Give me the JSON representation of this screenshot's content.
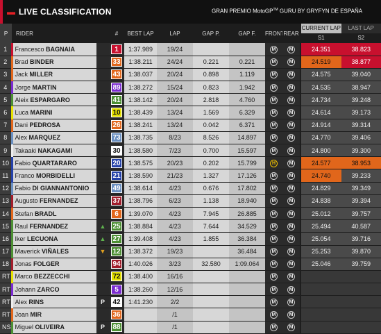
{
  "header": {
    "title": "LIVE CLASSIFICATION",
    "event": "GRAN PREMIO MotoGP",
    "event_tm": "TM",
    "event_suffix": " GURU BY GRYFYN DE ESPAÑA"
  },
  "columns": {
    "pos": "P",
    "rider": "RIDER",
    "num": "#",
    "best": "BEST LAP",
    "lap": "LAP",
    "gapp": "GAP P.",
    "gapf": "GAP F.",
    "front": "FRONT",
    "rear": "REAR"
  },
  "current_lap": {
    "tab_active": "CURRENT LAP",
    "tab_other": "LAST LAP",
    "s1": "S1",
    "s2": "S2"
  },
  "rows": [
    {
      "pos": "1",
      "first": "Francesco",
      "last": "BAGNAIA",
      "team": "#c8102e",
      "arrow": "",
      "num": "1",
      "numbg": "#c8102e",
      "numfg": "#fff",
      "best": "1:37.989",
      "lap": "19/24",
      "gapp": "",
      "gapf": "",
      "front": "M",
      "rear": "M",
      "s1": "24.351",
      "s2": "38.823",
      "s1c": "red",
      "s2c": "red"
    },
    {
      "pos": "2",
      "first": "Brad",
      "last": "BINDER",
      "team": "#e1661b",
      "arrow": "",
      "num": "33",
      "numbg": "#e1661b",
      "numfg": "#fff",
      "best": "1:38.211",
      "lap": "24/24",
      "gapp": "0.221",
      "gapf": "0.221",
      "front": "M",
      "rear": "M",
      "s1": "24.519",
      "s2": "38.877",
      "s1c": "orange",
      "s2c": "red"
    },
    {
      "pos": "3",
      "first": "Jack",
      "last": "MILLER",
      "team": "#e1661b",
      "arrow": "",
      "num": "43",
      "numbg": "#e1661b",
      "numfg": "#fff",
      "best": "1:38.037",
      "lap": "20/24",
      "gapp": "0.898",
      "gapf": "1.119",
      "front": "M",
      "rear": "M",
      "s1": "24.575",
      "s2": "39.040",
      "s1c": "",
      "s2c": ""
    },
    {
      "pos": "4",
      "first": "Jorge",
      "last": "MARTIN",
      "team": "#7b2bd0",
      "arrow": "",
      "num": "89",
      "numbg": "#7b2bd0",
      "numfg": "#fff",
      "best": "1:38.272",
      "lap": "15/24",
      "gapp": "0.823",
      "gapf": "1.942",
      "front": "M",
      "rear": "M",
      "s1": "24.535",
      "s2": "38.947",
      "s1c": "",
      "s2c": ""
    },
    {
      "pos": "5",
      "first": "Aleix",
      "last": "ESPARGARO",
      "team": "#4c8f33",
      "arrow": "",
      "num": "41",
      "numbg": "#4c8f33",
      "numfg": "#fff",
      "best": "1:38.142",
      "lap": "20/24",
      "gapp": "2.818",
      "gapf": "4.760",
      "front": "M",
      "rear": "M",
      "s1": "24.734",
      "s2": "39.248",
      "s1c": "",
      "s2c": ""
    },
    {
      "pos": "6",
      "first": "Luca",
      "last": "MARINI",
      "team": "#e5e100",
      "arrow": "",
      "num": "10",
      "numbg": "#e5e100",
      "numfg": "#111",
      "best": "1:38.439",
      "lap": "13/24",
      "gapp": "1.569",
      "gapf": "6.329",
      "front": "M",
      "rear": "M",
      "s1": "24.614",
      "s2": "39.173",
      "s1c": "",
      "s2c": ""
    },
    {
      "pos": "7",
      "first": "Dani",
      "last": "PEDROSA",
      "team": "#e1661b",
      "arrow": "",
      "num": "26",
      "numbg": "#e1661b",
      "numfg": "#fff",
      "best": "1:38.241",
      "lap": "13/24",
      "gapp": "0.042",
      "gapf": "6.371",
      "front": "M",
      "rear": "M",
      "s1": "24.914",
      "s2": "39.314",
      "s1c": "",
      "s2c": ""
    },
    {
      "pos": "8",
      "first": "Alex",
      "last": "MARQUEZ",
      "team": "#6a8fc0",
      "arrow": "",
      "num": "73",
      "numbg": "#6a8fc0",
      "numfg": "#fff",
      "best": "1:38.735",
      "lap": "8/23",
      "gapp": "8.526",
      "gapf": "14.897",
      "front": "M",
      "rear": "M",
      "s1": "24.770",
      "s2": "39.406",
      "s1c": "",
      "s2c": ""
    },
    {
      "pos": "9",
      "first": "Takaaki",
      "last": "NAKAGAMI",
      "team": "#eeeeee",
      "arrow": "",
      "num": "30",
      "numbg": "#ffffff",
      "numfg": "#111",
      "best": "1:38.580",
      "lap": "7/23",
      "gapp": "0.700",
      "gapf": "15.597",
      "front": "M",
      "rear": "M",
      "s1": "24.800",
      "s2": "39.300",
      "s1c": "",
      "s2c": ""
    },
    {
      "pos": "10",
      "first": "Fabio",
      "last": "QUARTARARO",
      "team": "#2541a8",
      "arrow": "",
      "num": "20",
      "numbg": "#2541a8",
      "numfg": "#fff",
      "best": "1:38.575",
      "lap": "20/23",
      "gapp": "0.202",
      "gapf": "15.799",
      "front": "H",
      "rear": "M",
      "s1": "24.577",
      "s2": "38.953",
      "s1c": "orange",
      "s2c": "orange"
    },
    {
      "pos": "11",
      "first": "Franco",
      "last": "MORBIDELLI",
      "team": "#2541a8",
      "arrow": "",
      "num": "21",
      "numbg": "#2541a8",
      "numfg": "#fff",
      "best": "1:38.590",
      "lap": "21/23",
      "gapp": "1.327",
      "gapf": "17.126",
      "front": "M",
      "rear": "M",
      "s1": "24.740",
      "s2": "39.233",
      "s1c": "orange",
      "s2c": ""
    },
    {
      "pos": "12",
      "first": "Fabio",
      "last": "DI GIANNANTONIO",
      "team": "#6a8fc0",
      "arrow": "",
      "num": "49",
      "numbg": "#6a8fc0",
      "numfg": "#fff",
      "best": "1:38.614",
      "lap": "4/23",
      "gapp": "0.676",
      "gapf": "17.802",
      "front": "M",
      "rear": "M",
      "s1": "24.829",
      "s2": "39.349",
      "s1c": "",
      "s2c": ""
    },
    {
      "pos": "13",
      "first": "Augusto",
      "last": "FERNANDEZ",
      "team": "#a11d2b",
      "arrow": "",
      "num": "37",
      "numbg": "#a11d2b",
      "numfg": "#fff",
      "best": "1:38.796",
      "lap": "6/23",
      "gapp": "1.138",
      "gapf": "18.940",
      "front": "M",
      "rear": "M",
      "s1": "24.838",
      "s2": "39.394",
      "s1c": "",
      "s2c": ""
    },
    {
      "pos": "14",
      "first": "Stefan",
      "last": "BRADL",
      "team": "#e1661b",
      "arrow": "",
      "num": "6",
      "numbg": "#e1661b",
      "numfg": "#fff",
      "best": "1:39.070",
      "lap": "4/23",
      "gapp": "7.945",
      "gapf": "26.885",
      "front": "M",
      "rear": "M",
      "s1": "25.012",
      "s2": "39.757",
      "s1c": "",
      "s2c": ""
    },
    {
      "pos": "15",
      "first": "Raul",
      "last": "FERNANDEZ",
      "team": "#4c8f33",
      "arrow": "up",
      "num": "25",
      "numbg": "#4c8f33",
      "numfg": "#fff",
      "best": "1:38.884",
      "lap": "4/23",
      "gapp": "7.644",
      "gapf": "34.529",
      "front": "M",
      "rear": "M",
      "s1": "25.494",
      "s2": "40.587",
      "s1c": "",
      "s2c": ""
    },
    {
      "pos": "16",
      "first": "Iker",
      "last": "LECUONA",
      "team": "#4c8f33",
      "arrow": "up",
      "num": "27",
      "numbg": "#4c8f33",
      "numfg": "#fff",
      "best": "1:39.408",
      "lap": "4/23",
      "gapp": "1.855",
      "gapf": "36.384",
      "front": "M",
      "rear": "M",
      "s1": "25.054",
      "s2": "39.716",
      "s1c": "",
      "s2c": ""
    },
    {
      "pos": "17",
      "first": "Maverick",
      "last": "VIÑALES",
      "team": "#4c8f33",
      "arrow": "down",
      "num": "12",
      "numbg": "#4c8f33",
      "numfg": "#fff",
      "best": "1:38.372",
      "lap": "19/23",
      "gapp": "",
      "gapf": "36.484",
      "front": "M",
      "rear": "M",
      "s1": "25.253",
      "s2": "39.870",
      "s1c": "",
      "s2c": ""
    },
    {
      "pos": "18",
      "first": "Jonas",
      "last": "FOLGER",
      "team": "#a11d2b",
      "arrow": "",
      "num": "94",
      "numbg": "#a11d2b",
      "numfg": "#fff",
      "best": "1:40.026",
      "lap": "3/23",
      "gapp": "32.580",
      "gapf": "1:09.064",
      "front": "M",
      "rear": "M",
      "s1": "25.046",
      "s2": "39.759",
      "s1c": "",
      "s2c": ""
    },
    {
      "pos": "RT",
      "first": "Marco",
      "last": "BEZZECCHI",
      "team": "#e5e100",
      "arrow": "",
      "num": "72",
      "numbg": "#e5e100",
      "numfg": "#111",
      "best": "1:38.400",
      "lap": "16/16",
      "gapp": "",
      "gapf": "",
      "front": "M",
      "rear": "M",
      "s1": "",
      "s2": "",
      "s1c": "empty",
      "s2c": "empty"
    },
    {
      "pos": "RT",
      "first": "Johann",
      "last": "ZARCO",
      "team": "#7b2bd0",
      "arrow": "",
      "num": "5",
      "numbg": "#7b2bd0",
      "numfg": "#fff",
      "best": "1:38.260",
      "lap": "12/16",
      "gapp": "",
      "gapf": "",
      "front": "M",
      "rear": "M",
      "s1": "",
      "s2": "",
      "s1c": "empty",
      "s2c": "empty"
    },
    {
      "pos": "RT",
      "first": "Alex",
      "last": "RINS",
      "team": "#eeeeee",
      "arrow": "P",
      "num": "42",
      "numbg": "#ffffff",
      "numfg": "#111",
      "best": "1:41.230",
      "lap": "2/2",
      "gapp": "",
      "gapf": "",
      "front": "M",
      "rear": "M",
      "s1": "",
      "s2": "",
      "s1c": "empty",
      "s2c": "empty"
    },
    {
      "pos": "RT",
      "first": "Joan",
      "last": "MIR",
      "team": "#e1661b",
      "arrow": "",
      "num": "36",
      "numbg": "#e1661b",
      "numfg": "#fff",
      "best": "",
      "lap": "/1",
      "gapp": "",
      "gapf": "",
      "front": "M",
      "rear": "M",
      "s1": "",
      "s2": "",
      "s1c": "empty",
      "s2c": "empty"
    },
    {
      "pos": "NS",
      "first": "Miguel",
      "last": "OLIVEIRA",
      "team": "#4c8f33",
      "arrow": "P",
      "num": "88",
      "numbg": "#4c8f33",
      "numfg": "#fff",
      "best": "",
      "lap": "/1",
      "gapp": "",
      "gapf": "",
      "front": "M",
      "rear": "M",
      "s1": "",
      "s2": "",
      "s1c": "empty",
      "s2c": "empty"
    }
  ]
}
